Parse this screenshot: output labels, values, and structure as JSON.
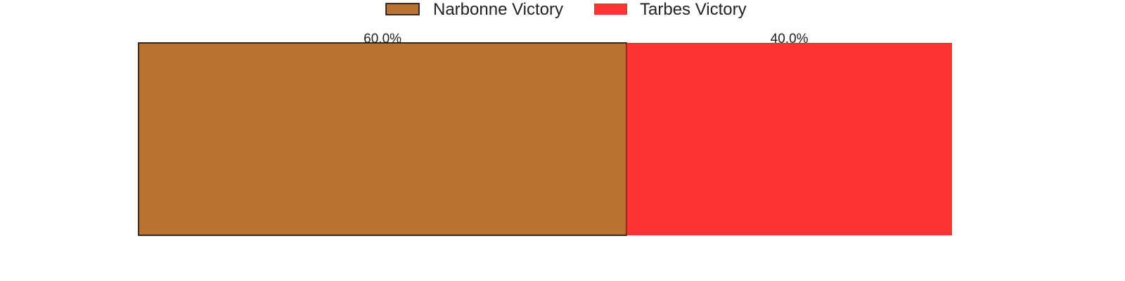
{
  "chart_data": {
    "type": "bar",
    "orientation": "horizontal",
    "stacked": true,
    "normalized": true,
    "grid": false,
    "legend_position": "top-center",
    "series": [
      {
        "name": "Narbonne Victory",
        "value": 60.0,
        "label": "60.0%",
        "color": "#b87333"
      },
      {
        "name": "Tarbes Victory",
        "value": 40.0,
        "label": "40.0%",
        "color": "#ff3333"
      }
    ],
    "xlim": [
      0,
      100
    ]
  }
}
